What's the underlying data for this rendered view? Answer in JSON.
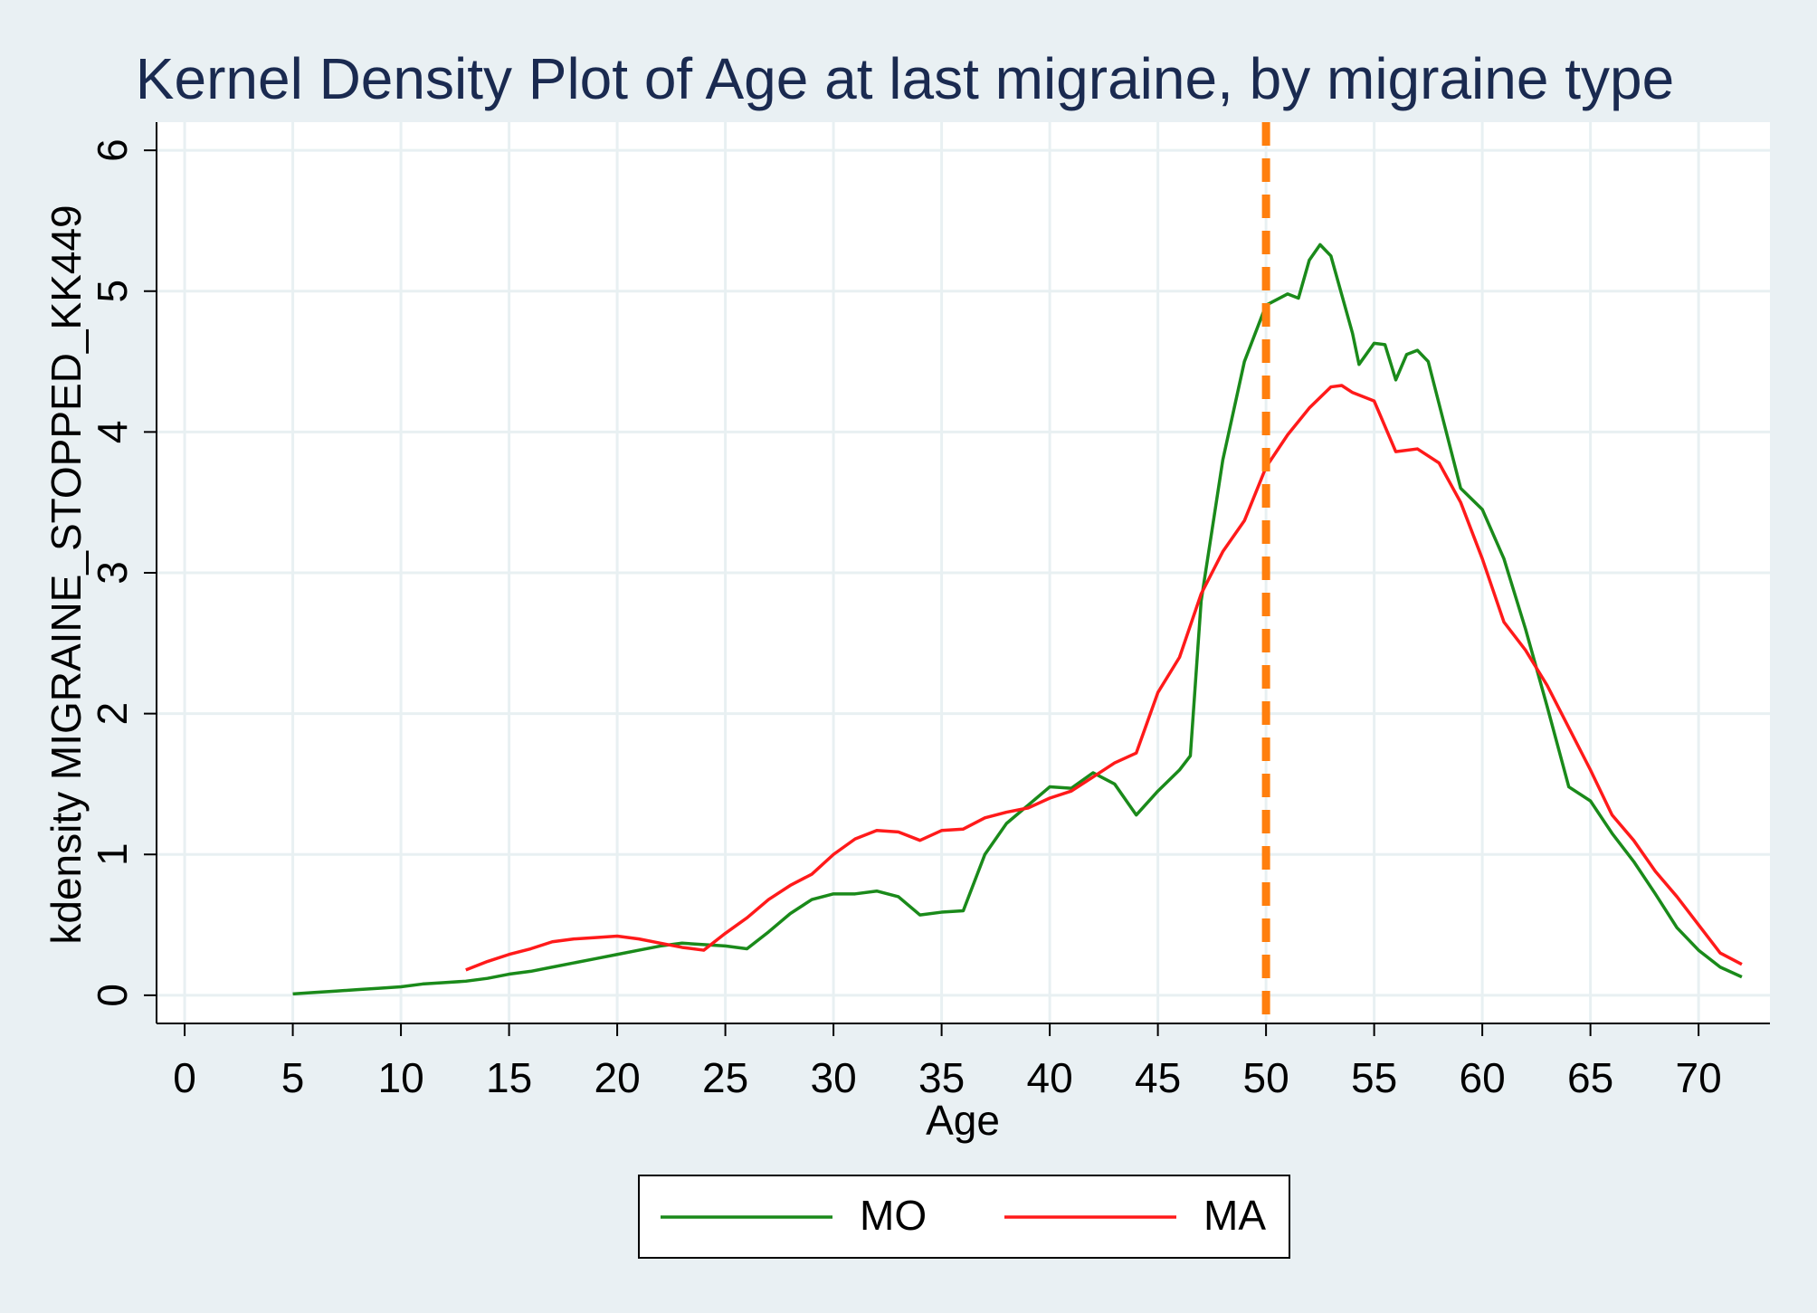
{
  "chart_data": {
    "type": "line",
    "title": "Kernel Density Plot of Age at last migraine, by migraine type",
    "x_label": "Age",
    "y_label": "kdensity MIGRAINE_STOPPED_KK449",
    "xlim": [
      -1.3,
      73.3
    ],
    "ylim": [
      -0.2,
      6.2
    ],
    "xticks": [
      0,
      5,
      10,
      15,
      20,
      25,
      30,
      35,
      40,
      45,
      50,
      55,
      60,
      65,
      70
    ],
    "yticks": [
      0,
      1,
      2,
      3,
      4,
      5,
      6
    ],
    "grid": true,
    "reference_line": {
      "x": 50,
      "color": "#ff7f0e"
    },
    "series": [
      {
        "name": "MO",
        "color": "#1a8a1a",
        "x": [
          5,
          6,
          7,
          8,
          9,
          10,
          11,
          12,
          13,
          14,
          15,
          16,
          17,
          18,
          19,
          20,
          21,
          22,
          23,
          24,
          25,
          26,
          27,
          28,
          29,
          30,
          31,
          32,
          33,
          34,
          35,
          36,
          37,
          38,
          39,
          40,
          41,
          42,
          43,
          44,
          45,
          46,
          46.5,
          47,
          48,
          49,
          50,
          51,
          51.5,
          52,
          52.5,
          53,
          54,
          54.3,
          55,
          55.5,
          56,
          56.5,
          57,
          57.5,
          58,
          59,
          60,
          61,
          62,
          63,
          64,
          65,
          66,
          67,
          68,
          69,
          70,
          71,
          72
        ],
        "values": [
          0.01,
          0.02,
          0.03,
          0.04,
          0.05,
          0.06,
          0.08,
          0.09,
          0.1,
          0.12,
          0.15,
          0.17,
          0.2,
          0.23,
          0.26,
          0.29,
          0.32,
          0.35,
          0.37,
          0.36,
          0.35,
          0.33,
          0.45,
          0.58,
          0.68,
          0.72,
          0.72,
          0.74,
          0.7,
          0.57,
          0.59,
          0.6,
          1.0,
          1.22,
          1.35,
          1.48,
          1.47,
          1.58,
          1.5,
          1.28,
          1.45,
          1.6,
          1.7,
          2.8,
          3.8,
          4.5,
          4.9,
          4.98,
          4.95,
          5.22,
          5.33,
          5.25,
          4.7,
          4.48,
          4.63,
          4.62,
          4.37,
          4.55,
          4.58,
          4.5,
          4.2,
          3.6,
          3.45,
          3.1,
          2.6,
          2.05,
          1.48,
          1.38,
          1.15,
          0.95,
          0.72,
          0.48,
          0.32,
          0.2,
          0.13
        ]
      },
      {
        "name": "MA",
        "color": "#ff1a1a",
        "x": [
          13,
          14,
          15,
          16,
          17,
          18,
          19,
          20,
          21,
          22,
          23,
          24,
          25,
          26,
          27,
          28,
          29,
          30,
          31,
          32,
          33,
          34,
          35,
          36,
          37,
          38,
          39,
          40,
          41,
          42,
          43,
          44,
          45,
          46,
          47,
          48,
          49,
          50,
          51,
          52,
          53,
          53.5,
          54,
          55,
          56,
          57,
          58,
          59,
          60,
          61,
          62,
          63,
          64,
          65,
          66,
          67,
          68,
          69,
          70,
          71,
          72
        ],
        "values": [
          0.18,
          0.24,
          0.29,
          0.33,
          0.38,
          0.4,
          0.41,
          0.42,
          0.4,
          0.37,
          0.34,
          0.32,
          0.44,
          0.55,
          0.68,
          0.78,
          0.86,
          1.0,
          1.11,
          1.17,
          1.16,
          1.1,
          1.17,
          1.18,
          1.26,
          1.3,
          1.33,
          1.4,
          1.45,
          1.55,
          1.65,
          1.72,
          2.15,
          2.4,
          2.85,
          3.15,
          3.37,
          3.75,
          3.98,
          4.17,
          4.32,
          4.33,
          4.28,
          4.22,
          3.86,
          3.88,
          3.78,
          3.5,
          3.1,
          2.65,
          2.45,
          2.2,
          1.9,
          1.6,
          1.28,
          1.1,
          0.88,
          0.7,
          0.5,
          0.3,
          0.22
        ]
      }
    ]
  }
}
